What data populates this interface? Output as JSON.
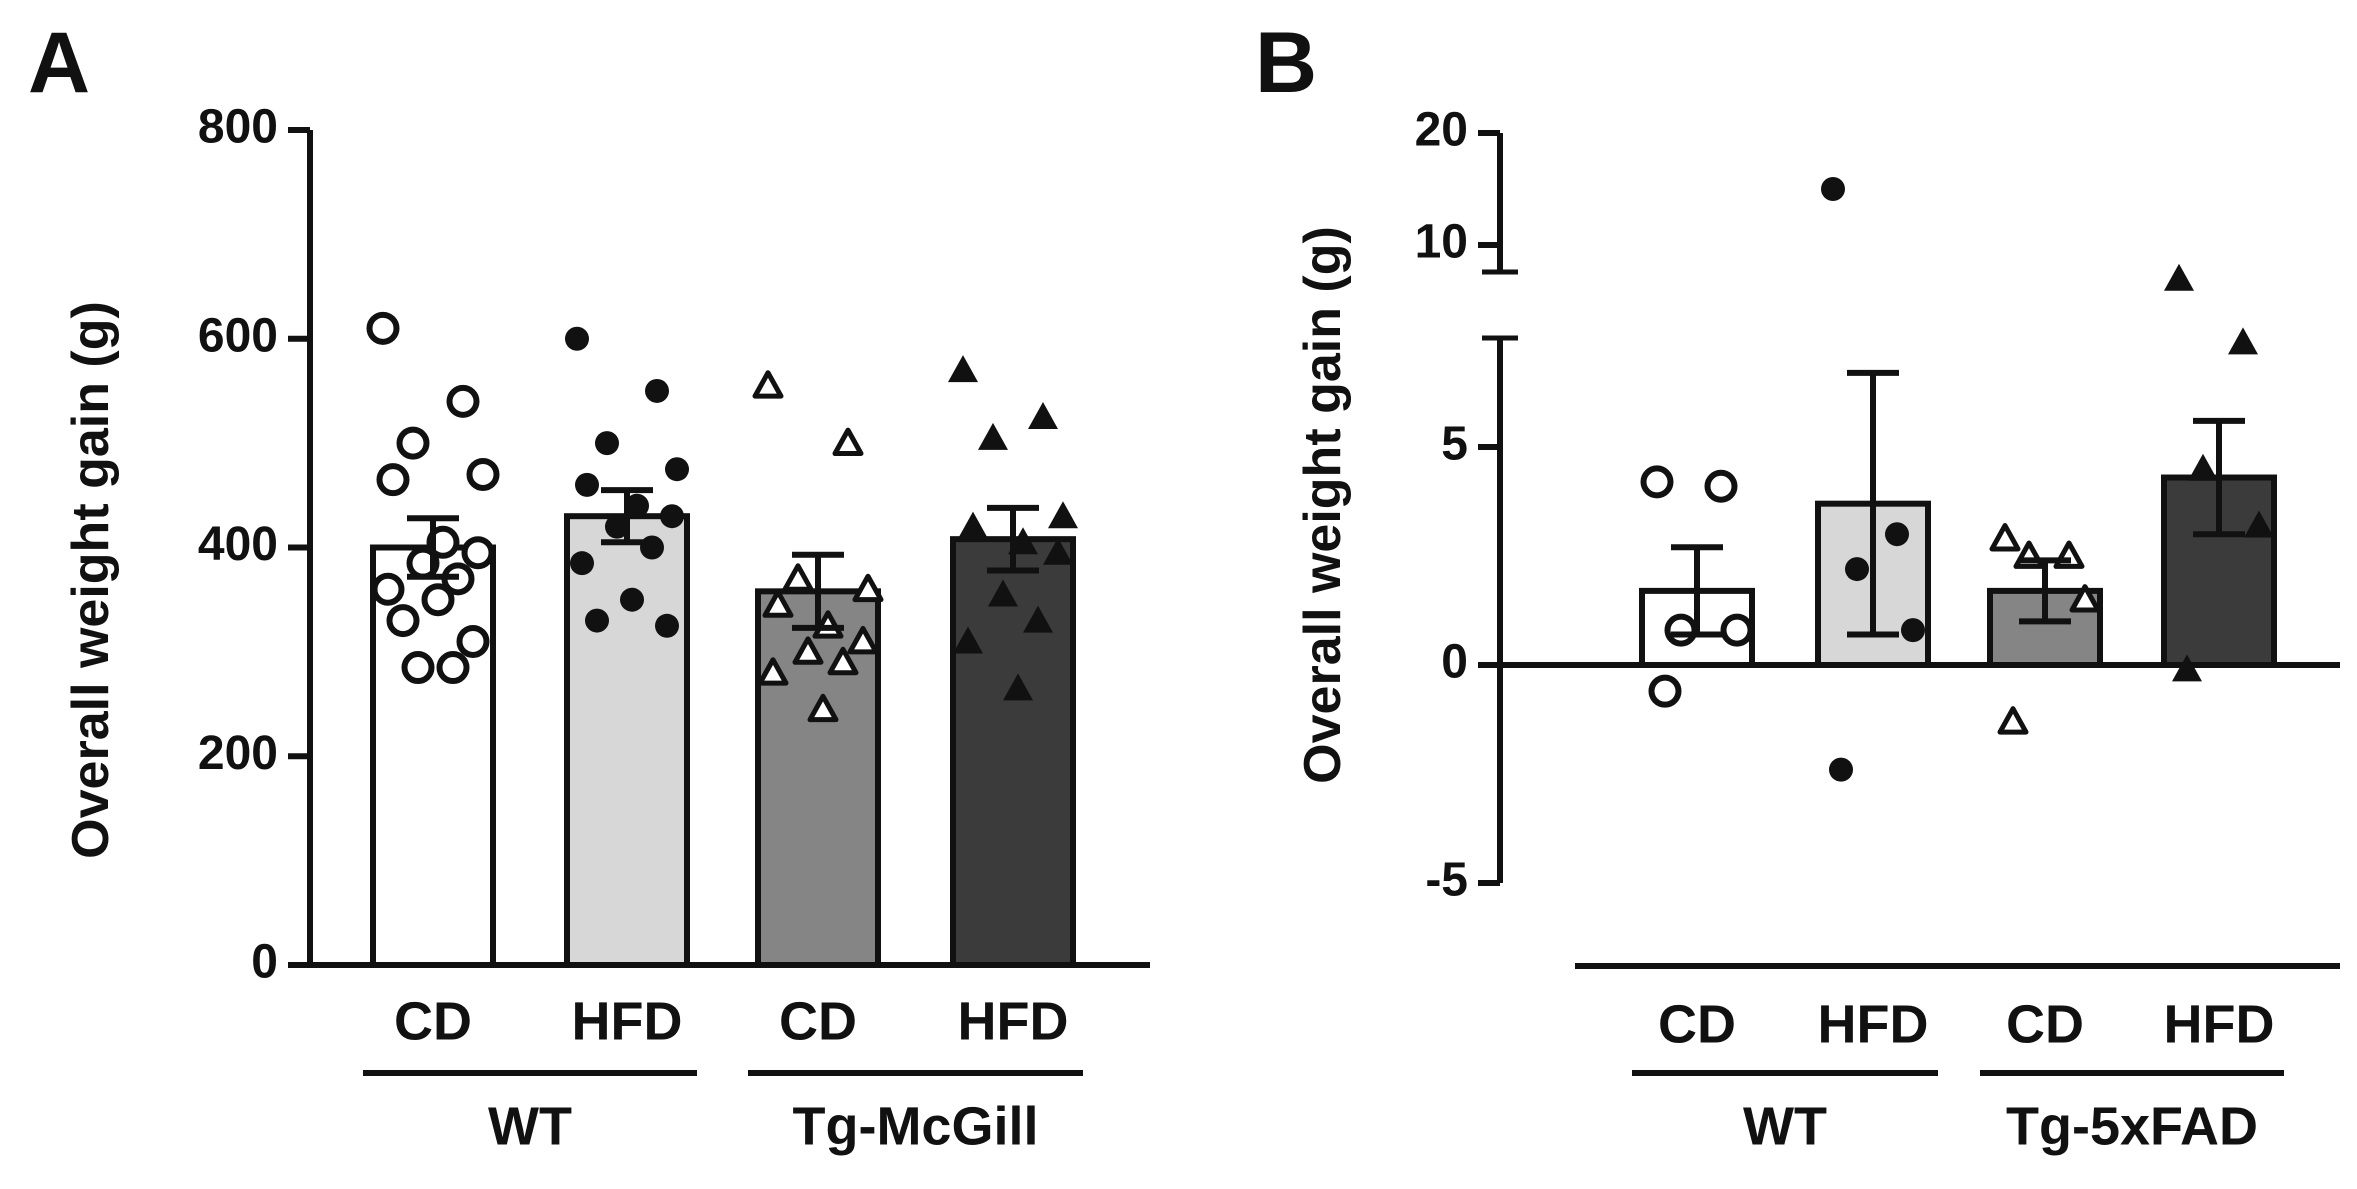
{
  "chart_data": [
    {
      "panel": "A",
      "type": "bar",
      "ylabel": "Overall weight gain (g)",
      "ylim": [
        0,
        800
      ],
      "yticks": [
        0,
        200,
        400,
        600,
        800
      ],
      "categories": [
        "CD",
        "HFD",
        "CD",
        "HFD"
      ],
      "groups": [
        {
          "label": "WT",
          "bars": [
            0,
            1
          ]
        },
        {
          "label": "Tg-McGill",
          "bars": [
            2,
            3
          ]
        }
      ],
      "bars": [
        {
          "label": "CD",
          "mean": 400,
          "sem": 28,
          "fill": "#ffffff",
          "marker": "circle-open",
          "points": [
            610,
            540,
            500,
            470,
            465,
            405,
            395,
            385,
            370,
            360,
            350,
            330,
            310,
            285,
            285
          ]
        },
        {
          "label": "HFD",
          "mean": 430,
          "sem": 25,
          "fill": "#d7d7d7",
          "marker": "circle-filled",
          "points": [
            600,
            550,
            500,
            475,
            460,
            440,
            430,
            420,
            400,
            385,
            350,
            330,
            325
          ]
        },
        {
          "label": "CD",
          "mean": 358,
          "sem": 35,
          "fill": "#858585",
          "marker": "triangle-open",
          "points": [
            555,
            500,
            370,
            360,
            345,
            325,
            310,
            300,
            290,
            280,
            245
          ]
        },
        {
          "label": "HFD",
          "mean": 408,
          "sem": 30,
          "fill": "#3b3b3b",
          "marker": "triangle-filled",
          "points": [
            570,
            525,
            505,
            430,
            420,
            405,
            395,
            355,
            330,
            310,
            265
          ]
        }
      ]
    },
    {
      "panel": "B",
      "type": "bar",
      "ylabel": "Overall weight gain (g)",
      "ylim": [
        -5,
        20
      ],
      "axis_break": [
        7.5,
        9.2
      ],
      "yticks": [
        -5,
        0,
        5,
        10,
        20
      ],
      "categories": [
        "CD",
        "HFD",
        "CD",
        "HFD"
      ],
      "groups": [
        {
          "label": "WT",
          "bars": [
            0,
            1
          ]
        },
        {
          "label": "Tg-5xFAD",
          "bars": [
            2,
            3
          ]
        }
      ],
      "bars": [
        {
          "label": "CD",
          "mean": 1.7,
          "sem": 1.0,
          "fill": "#ffffff",
          "marker": "circle-open",
          "points": [
            4.2,
            4.1,
            0.8,
            0.8,
            -0.6
          ]
        },
        {
          "label": "HFD",
          "mean": 3.7,
          "sem": 3.0,
          "fill": "#d7d7d7",
          "marker": "circle-filled",
          "points": [
            15.0,
            3.0,
            2.2,
            0.8,
            -2.4
          ]
        },
        {
          "label": "CD",
          "mean": 1.7,
          "sem": 0.7,
          "fill": "#858585",
          "marker": "triangle-open",
          "points": [
            2.9,
            2.5,
            2.5,
            1.5,
            -1.3
          ]
        },
        {
          "label": "HFD",
          "mean": 4.3,
          "sem": 1.3,
          "fill": "#3b3b3b",
          "marker": "triangle-filled",
          "points": [
            9.0,
            7.4,
            4.5,
            3.2,
            -0.1
          ]
        }
      ]
    }
  ]
}
